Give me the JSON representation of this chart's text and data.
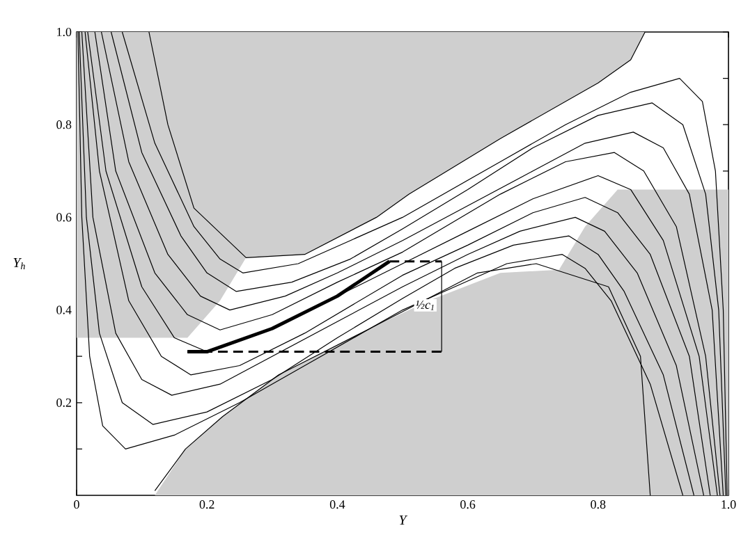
{
  "chart_data": {
    "type": "line",
    "xlabel": "Y",
    "ylabel": "Y$_{h}$",
    "xlim": [
      0,
      1
    ],
    "ylim": [
      0,
      1
    ],
    "xticks": [
      0,
      0.2,
      0.4,
      0.6,
      0.8,
      {
        "value": 1.0,
        "label": "1.0"
      }
    ],
    "yticks": [
      {
        "value": 0.1,
        "label": null
      },
      0.2,
      {
        "value": 0.3,
        "label": null
      },
      0.4,
      {
        "value": 0.5,
        "label": null
      },
      0.6,
      {
        "value": 0.7,
        "label": null
      },
      0.8,
      {
        "value": 0.9,
        "label": null
      },
      {
        "value": 1.0,
        "label": "1.0"
      }
    ],
    "annotations": [
      {
        "text": "½c$_{1}$",
        "x": 0.535,
        "y": 0.41
      }
    ],
    "series": [
      {
        "type": "area",
        "color": "#cfcfcf",
        "x": [
          0,
          0,
          0.17,
          0.22,
          0.26,
          0.35,
          0.46,
          0.51,
          0.65,
          0.8,
          0.85,
          0.872
        ],
        "values": [
          1,
          0.34,
          0.34,
          0.42,
          0.513,
          0.52,
          0.6,
          0.65,
          0.77,
          0.89,
          0.94,
          1.0
        ]
      },
      {
        "type": "area",
        "color": "#cfcfcf",
        "x": [
          0.12,
          0.167,
          0.224,
          0.31,
          0.45,
          0.54,
          0.65,
          0.74,
          0.78,
          0.83,
          1.0
        ],
        "values": [
          0,
          0.1,
          0.17,
          0.26,
          0.36,
          0.42,
          0.48,
          0.487,
          0.58,
          0.66,
          0.66
        ]
      },
      {
        "color": "#000000",
        "x": [
          0.111,
          0.14,
          0.18,
          0.26,
          0.35,
          0.46,
          0.51,
          0.65,
          0.8,
          0.85,
          0.872
        ],
        "values": [
          1.0,
          0.8,
          0.62,
          0.513,
          0.52,
          0.6,
          0.65,
          0.77,
          0.89,
          0.94,
          1.0
        ]
      },
      {
        "color": "#000000",
        "x": [
          0.12,
          0.167,
          0.224,
          0.31,
          0.45,
          0.615,
          0.705,
          0.816,
          0.865,
          0.88
        ],
        "values": [
          0.01,
          0.1,
          0.17,
          0.26,
          0.36,
          0.48,
          0.5,
          0.45,
          0.3,
          0.0
        ]
      },
      {
        "color": "#000000",
        "x": [
          0.002,
          0.008,
          0.02,
          0.04,
          0.075,
          0.15,
          0.25,
          0.35,
          0.5,
          0.58,
          0.66,
          0.745,
          0.78,
          0.82,
          0.88,
          0.93
        ],
        "values": [
          1,
          0.6,
          0.3,
          0.15,
          0.1,
          0.13,
          0.2,
          0.28,
          0.4,
          0.45,
          0.5,
          0.52,
          0.49,
          0.42,
          0.24,
          0
        ]
      },
      {
        "color": "#000000",
        "x": [
          0.004,
          0.015,
          0.035,
          0.07,
          0.117,
          0.2,
          0.3,
          0.4,
          0.5,
          0.58,
          0.67,
          0.755,
          0.8,
          0.84,
          0.9,
          0.947
        ],
        "values": [
          1,
          0.6,
          0.35,
          0.2,
          0.153,
          0.18,
          0.25,
          0.34,
          0.425,
          0.49,
          0.54,
          0.56,
          0.52,
          0.44,
          0.26,
          0
        ]
      },
      {
        "color": "#000000",
        "x": [
          0.008,
          0.025,
          0.06,
          0.1,
          0.146,
          0.22,
          0.3,
          0.4,
          0.5,
          0.6,
          0.68,
          0.765,
          0.81,
          0.86,
          0.92,
          0.962
        ],
        "values": [
          1,
          0.6,
          0.35,
          0.25,
          0.216,
          0.24,
          0.3,
          0.375,
          0.45,
          0.52,
          0.57,
          0.6,
          0.57,
          0.48,
          0.28,
          0
        ]
      },
      {
        "color": "#000000",
        "x": [
          0.013,
          0.035,
          0.08,
          0.13,
          0.175,
          0.25,
          0.35,
          0.5,
          0.6,
          0.7,
          0.78,
          0.83,
          0.88,
          0.94,
          0.972
        ],
        "values": [
          1,
          0.7,
          0.42,
          0.3,
          0.26,
          0.28,
          0.35,
          0.475,
          0.54,
          0.61,
          0.643,
          0.61,
          0.52,
          0.3,
          0
        ]
      },
      {
        "color": "#000000",
        "x": [
          0.017,
          0.045,
          0.1,
          0.15,
          0.2,
          0.3,
          0.4,
          0.5,
          0.6,
          0.7,
          0.8,
          0.85,
          0.9,
          0.955,
          0.983
        ],
        "values": [
          1,
          0.7,
          0.45,
          0.34,
          0.31,
          0.36,
          0.43,
          0.5,
          0.57,
          0.64,
          0.69,
          0.66,
          0.55,
          0.3,
          0
        ]
      },
      {
        "color": "#000000",
        "x": [
          0.028,
          0.06,
          0.12,
          0.17,
          0.22,
          0.3,
          0.4,
          0.5,
          0.65,
          0.75,
          0.825,
          0.87,
          0.92,
          0.965,
          0.987
        ],
        "values": [
          1,
          0.7,
          0.48,
          0.39,
          0.357,
          0.39,
          0.46,
          0.525,
          0.65,
          0.72,
          0.74,
          0.7,
          0.58,
          0.3,
          0
        ]
      },
      {
        "color": "#000000",
        "x": [
          0.038,
          0.08,
          0.14,
          0.19,
          0.235,
          0.32,
          0.4,
          0.5,
          0.6,
          0.7,
          0.78,
          0.854,
          0.9,
          0.94,
          0.975,
          0.992
        ],
        "values": [
          1,
          0.72,
          0.52,
          0.43,
          0.4,
          0.43,
          0.48,
          0.55,
          0.625,
          0.7,
          0.76,
          0.784,
          0.75,
          0.65,
          0.4,
          0
        ]
      },
      {
        "color": "#000000",
        "x": [
          0.053,
          0.1,
          0.16,
          0.2,
          0.245,
          0.33,
          0.42,
          0.5,
          0.6,
          0.7,
          0.8,
          0.883,
          0.93,
          0.965,
          0.985,
          0.996
        ],
        "values": [
          1,
          0.74,
          0.56,
          0.48,
          0.44,
          0.46,
          0.51,
          0.575,
          0.66,
          0.75,
          0.82,
          0.847,
          0.8,
          0.65,
          0.4,
          0
        ]
      },
      {
        "color": "#000000",
        "x": [
          0.07,
          0.12,
          0.18,
          0.22,
          0.255,
          0.34,
          0.42,
          0.5,
          0.65,
          0.75,
          0.85,
          0.925,
          0.96,
          0.98,
          0.992,
          0.998
        ],
        "values": [
          1,
          0.76,
          0.58,
          0.51,
          0.48,
          0.5,
          0.55,
          0.6,
          0.72,
          0.8,
          0.87,
          0.9,
          0.85,
          0.7,
          0.4,
          0
        ]
      },
      {
        "color": "#000000",
        "line_style": "solid",
        "x": [
          0.17,
          0.2,
          0.3,
          0.4,
          0.48
        ],
        "values": [
          0.31,
          0.31,
          0.36,
          0.43,
          0.505
        ]
      },
      {
        "color": "#000000",
        "line_style": "dashed",
        "x": [
          0.17,
          0.56
        ],
        "values": [
          0.31,
          0.31
        ]
      },
      {
        "color": "#000000",
        "line_style": "dashed",
        "x": [
          0.48,
          0.56
        ],
        "values": [
          0.505,
          0.505
        ]
      },
      {
        "color": "#000000",
        "x": [
          0.56,
          0.56
        ],
        "values": [
          0.31,
          0.505
        ]
      }
    ]
  }
}
